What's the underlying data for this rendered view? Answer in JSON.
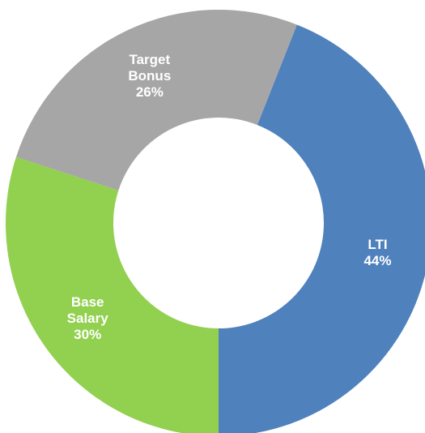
{
  "chart_data": {
    "type": "donut",
    "categories": [
      "LTI",
      "Base Salary",
      "Target Bonus"
    ],
    "values": [
      44,
      30,
      26
    ],
    "value_labels": [
      "44%",
      "30%",
      "26%"
    ],
    "colors": [
      "#4f81bd",
      "#92d050",
      "#a6a6a6"
    ]
  }
}
